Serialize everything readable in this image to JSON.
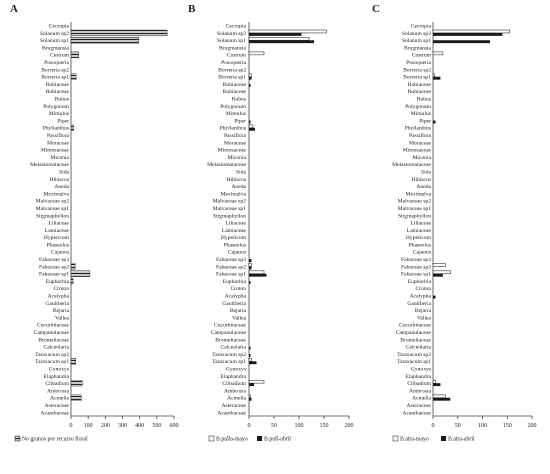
{
  "chart_data": [
    {
      "type": "bar",
      "orientation": "horizontal",
      "panel_label": "A",
      "categories": [
        "Cecropia",
        "Solanum sp2",
        "Solanum sp1",
        "Brugmansia",
        "Cestrum",
        "Posoqueria",
        "Borreria sp2",
        "Borreria sp1",
        "Rubiaceae",
        "Rubiaceae",
        "Rubus",
        "Polygonum",
        "Mimulus",
        "Piper",
        "Phyllanthus",
        "Passiflora",
        "Moraceae",
        "Mimosaceae",
        "Miconia",
        "Melastomataceae",
        "Sida",
        "Hibiscus",
        "Aneda",
        "Meximalva",
        "Malvaceae sp2",
        "Malvaceae sp1",
        "Stigmaphyllon",
        "Liliaceae",
        "Lamiaceae",
        "Hypericum",
        "Phaseolus",
        "Cajanus",
        "Fabaceae sp3",
        "Fabaceae sp2",
        "Fabaceae sp1",
        "Euphorbia",
        "Croton",
        "Acalypha",
        "Gaultheria",
        "Bejaria",
        "Vallea",
        "Cucurbitaceae",
        "Campanulaceae",
        "Bromeliaceae",
        "Calceolaria",
        "Taraxacum sp2",
        "Taraxacum sp1",
        "Gynoxys",
        "Elaphandra",
        "Clibadium",
        "Ambrosia",
        "Acmella",
        "Asteraceae",
        "Acanthaceae"
      ],
      "series": [
        {
          "name": "No granos por recurso floral",
          "values": [
            0,
            560,
            395,
            0,
            45,
            0,
            0,
            30,
            0,
            0,
            0,
            0,
            0,
            0,
            15,
            0,
            0,
            0,
            0,
            0,
            0,
            0,
            0,
            0,
            0,
            0,
            0,
            0,
            0,
            0,
            0,
            0,
            0,
            25,
            110,
            12,
            0,
            0,
            0,
            0,
            0,
            0,
            0,
            0,
            0,
            0,
            28,
            0,
            0,
            65,
            0,
            60,
            0,
            0
          ]
        }
      ],
      "xlim": [
        0,
        600
      ],
      "xticks": [
        0,
        100,
        200,
        300,
        400,
        500,
        600
      ],
      "legend": "bottom"
    },
    {
      "type": "bar",
      "orientation": "horizontal",
      "panel_label": "B",
      "categories": [
        "Cecropia",
        "Solanum sp2",
        "Solanum sp1",
        "Brugmansia",
        "Costrum",
        "Posoqueria",
        "Borreria sp2",
        "Borreria sp1",
        "Rubiaceae",
        "Rubiaceae",
        "Rubus",
        "Polygonum",
        "Mimulus",
        "Piper",
        "Phyllanthus",
        "Passiflora",
        "Moraceae",
        "Mimosaceae",
        "Miconia",
        "Melastomataceae",
        "Sida",
        "Hibiscus",
        "Aneda",
        "Meximalva",
        "Malvaceae sp2",
        "Malvaceae sp1",
        "Stigmaphyllon",
        "Liliaceae",
        "Lamiaceae",
        "Hypericum",
        "Phaseolus",
        "Cajanus",
        "Fabaceae sp3",
        "Fabaceae sp2",
        "Fabaceae sp1",
        "Euphorbia",
        "Croton",
        "Acalypha",
        "Gaultheria",
        "Bejaria",
        "Vallea",
        "Cucurbitaceae",
        "Campanulaceae",
        "Bromeliaceae",
        "Calceolaria",
        "Taraxacum sp2",
        "Taraxacum sp1",
        "Gynoxys",
        "Elaphandra",
        "Clibadium",
        "Ambrosia",
        "Acmella",
        "Asteraceae",
        "Acanthaceae"
      ],
      "series": [
        {
          "name": "B.pulla-mayo",
          "values": [
            0,
            155,
            120,
            0,
            30,
            0,
            0,
            5,
            0,
            0,
            0,
            0,
            0,
            0,
            8,
            0,
            0,
            0,
            0,
            0,
            0,
            0,
            0,
            0,
            0,
            0,
            0,
            0,
            0,
            0,
            0,
            0,
            0,
            5,
            30,
            0,
            0,
            0,
            0,
            0,
            0,
            0,
            0,
            0,
            0,
            0,
            5,
            0,
            0,
            30,
            0,
            3,
            0,
            0
          ]
        },
        {
          "name": "B.pull-abril",
          "values": [
            0,
            105,
            130,
            0,
            0,
            0,
            0,
            5,
            3,
            0,
            0,
            0,
            0,
            3,
            12,
            0,
            0,
            0,
            0,
            0,
            0,
            0,
            0,
            0,
            0,
            0,
            0,
            0,
            0,
            0,
            0,
            0,
            5,
            5,
            35,
            3,
            0,
            0,
            0,
            0,
            0,
            0,
            0,
            0,
            3,
            3,
            15,
            0,
            0,
            10,
            0,
            5,
            0,
            0
          ]
        }
      ],
      "xlim": [
        0,
        200
      ],
      "xticks": [
        0,
        50,
        100,
        150,
        200
      ],
      "legend": "bottom"
    },
    {
      "type": "bar",
      "orientation": "horizontal",
      "panel_label": "C",
      "categories": [
        "Cecropia",
        "Solanum sp2",
        "Solanum sp1",
        "Brugmansia",
        "Costrum",
        "Posoqueria",
        "Borreria sp2",
        "Borreria sp1",
        "Rubiaceae",
        "Rubiaceae",
        "Rubus",
        "Polygonum",
        "Mimulus",
        "Piper",
        "Phyllanthus",
        "Passiflora",
        "Moraceae",
        "Mimosaceae",
        "Miconia",
        "Melastomataceae",
        "Sida",
        "Hibiscus",
        "Aneda",
        "Meximalva",
        "Malvaceae sp2",
        "Malvaceae sp1",
        "Stigmaphyllon",
        "Liliaceae",
        "Lamiaceae",
        "Hypericum",
        "Phaseolus",
        "Cajanus",
        "Fabaceae sp3",
        "Fabaceae sp2",
        "Fabaceae sp1",
        "Euphorbia",
        "Croton",
        "Acalypha",
        "Gaultheria",
        "Bejaria",
        "Vallea",
        "Cucurbitaceae",
        "Campanulaceae",
        "Bromeliaceae",
        "Calceolaria",
        "Taraxacum sp2",
        "Taraxacum sp1",
        "Gynoxys",
        "Elaphandra",
        "Clibadium",
        "Ambrosia",
        "Acmella",
        "Asteraceae",
        "Acanthaceae"
      ],
      "series": [
        {
          "name": "B.atra-mayo",
          "values": [
            0,
            155,
            0,
            0,
            20,
            0,
            0,
            3,
            0,
            0,
            0,
            0,
            0,
            0,
            0,
            0,
            0,
            0,
            0,
            0,
            0,
            0,
            0,
            0,
            0,
            0,
            0,
            0,
            0,
            0,
            0,
            0,
            0,
            25,
            35,
            0,
            0,
            0,
            0,
            0,
            0,
            0,
            0,
            0,
            0,
            0,
            0,
            0,
            0,
            5,
            0,
            25,
            0,
            0
          ]
        },
        {
          "name": "B.atra-abril",
          "values": [
            0,
            140,
            115,
            0,
            0,
            0,
            0,
            15,
            0,
            0,
            0,
            0,
            0,
            5,
            0,
            0,
            0,
            0,
            0,
            0,
            0,
            0,
            0,
            0,
            0,
            0,
            0,
            0,
            0,
            0,
            0,
            0,
            0,
            0,
            20,
            0,
            0,
            5,
            0,
            0,
            0,
            0,
            0,
            0,
            0,
            0,
            0,
            0,
            0,
            15,
            0,
            35,
            0,
            0
          ]
        }
      ],
      "xlim": [
        0,
        200
      ],
      "xticks": [
        0,
        50,
        100,
        150,
        200
      ],
      "legend": "bottom"
    }
  ],
  "colors": {
    "solid": "#1a1a1a",
    "hatched_stroke": "#555555",
    "outline": "#333333"
  }
}
